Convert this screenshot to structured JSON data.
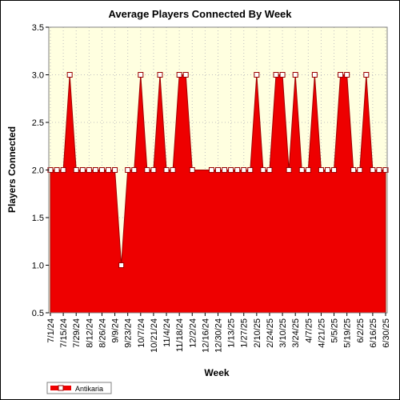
{
  "chart_data": {
    "type": "area",
    "title": "Average Players Connected By Week",
    "xlabel": "Week",
    "ylabel": "Players Connected",
    "ylim": [
      0.5,
      3.5
    ],
    "yticks": [
      "0.5",
      "1.0",
      "1.5",
      "2.0",
      "2.5",
      "3.0",
      "3.5"
    ],
    "x": [
      "2024-07-01",
      "2024-07-08",
      "2024-07-15",
      "2024-07-22",
      "2024-07-29",
      "2024-08-05",
      "2024-08-12",
      "2024-08-19",
      "2024-08-26",
      "2024-09-02",
      "2024-09-09",
      "2024-09-16",
      "2024-09-23",
      "2024-09-30",
      "2024-10-07",
      "2024-10-14",
      "2024-10-21",
      "2024-10-28",
      "2024-11-04",
      "2024-11-11",
      "2024-11-18",
      "2024-11-25",
      "2024-12-02",
      "2024-12-09",
      "2024-12-16",
      "2024-12-23",
      "2024-12-30",
      "2025-01-06",
      "2025-01-13",
      "2025-01-20",
      "2025-01-27",
      "2025-02-03",
      "2025-02-10",
      "2025-02-17",
      "2025-02-24",
      "2025-03-03",
      "2025-03-10",
      "2025-03-17",
      "2025-03-24",
      "2025-03-31",
      "2025-04-07",
      "2025-04-14",
      "2025-04-21",
      "2025-04-28",
      "2025-05-05",
      "2025-05-12",
      "2025-05-19",
      "2025-05-26",
      "2025-06-02",
      "2025-06-09",
      "2025-06-16",
      "2025-06-23",
      "2025-06-30"
    ],
    "xtick_labels": [
      "7/1/24",
      "7/15/24",
      "7/29/24",
      "8/12/24",
      "8/26/24",
      "9/9/24",
      "9/23/24",
      "10/7/24",
      "10/21/24",
      "11/4/24",
      "11/18/24",
      "12/2/24",
      "12/16/24",
      "12/30/24",
      "1/13/25",
      "1/27/25",
      "2/10/25",
      "2/24/25",
      "3/10/25",
      "3/24/25",
      "4/7/25",
      "4/21/25",
      "5/5/25",
      "5/19/25",
      "6/2/25",
      "6/16/25",
      "6/30/25"
    ],
    "series": [
      {
        "name": "Antikaria",
        "color": "#ee0000",
        "values": [
          2,
          2,
          2,
          3,
          2,
          2,
          2,
          2,
          2,
          2,
          2,
          1,
          2,
          2,
          3,
          2,
          2,
          3,
          2,
          2,
          3,
          3,
          2,
          null,
          null,
          2,
          2,
          2,
          2,
          2,
          2,
          2,
          3,
          2,
          2,
          3,
          3,
          2,
          3,
          2,
          2,
          3,
          2,
          2,
          2,
          3,
          3,
          2,
          2,
          3,
          2,
          2,
          2
        ],
        "shown_values": [
          2,
          2,
          2,
          3,
          2,
          2,
          2,
          2,
          2,
          2,
          2,
          1,
          2,
          2,
          3,
          2,
          2,
          3,
          2,
          2,
          3,
          3,
          2,
          2,
          2,
          2,
          2,
          2,
          2,
          2,
          2,
          2,
          3,
          2,
          2,
          3,
          3,
          2,
          3,
          2,
          2,
          3,
          2,
          2,
          2,
          3,
          3,
          2,
          2,
          3,
          2,
          2,
          2
        ]
      }
    ],
    "grid": true,
    "legend": "bottom-left",
    "plot_background": "#ffffe0"
  }
}
